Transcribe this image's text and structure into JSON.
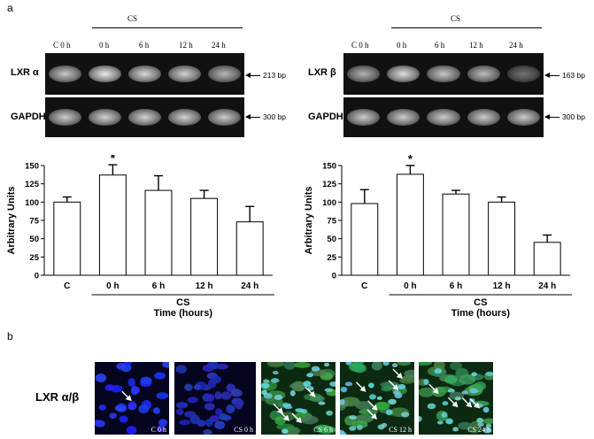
{
  "panel_a_label": "a",
  "panel_b_label": "b",
  "gel_left": {
    "cs_header": "CS",
    "lanes": [
      "C  0 h",
      "0 h",
      "6 h",
      "12 h",
      "24 h"
    ],
    "target_label": "LXR α",
    "target_bp": "213 bp",
    "control_label": "GAPDH",
    "control_bp": "300 bp",
    "target_intensity": [
      0.78,
      0.92,
      0.85,
      0.82,
      0.72
    ],
    "control_intensity": [
      0.8,
      0.82,
      0.82,
      0.82,
      0.8
    ]
  },
  "gel_right": {
    "cs_header": "CS",
    "lanes": [
      "C  0 h",
      "0 h",
      "6 h",
      "12 h",
      "24 h"
    ],
    "target_label": "LXR β",
    "target_bp": "163 bp",
    "control_label": "GAPDH",
    "control_bp": "300 bp",
    "target_intensity": [
      0.7,
      0.88,
      0.78,
      0.74,
      0.45
    ],
    "control_intensity": [
      0.8,
      0.8,
      0.8,
      0.8,
      0.8
    ]
  },
  "chart_data": [
    {
      "type": "bar",
      "categories": [
        "C",
        "0 h",
        "6 h",
        "12 h",
        "24 h"
      ],
      "values": [
        100,
        137,
        116,
        105,
        73
      ],
      "errors": [
        7,
        14,
        20,
        11,
        21
      ],
      "significance": [
        "",
        "*",
        "",
        "",
        ""
      ],
      "ylabel": "Arbitrary Units",
      "xlabel": "Time (hours)",
      "group_label": "CS",
      "ylim": [
        0,
        150
      ],
      "yticks": [
        "0",
        "25",
        "50",
        "75",
        "100",
        "125",
        "150"
      ],
      "grid": false
    },
    {
      "type": "bar",
      "categories": [
        "C",
        "0 h",
        "6 h",
        "12 h",
        "24 h"
      ],
      "values": [
        98,
        138,
        111,
        100,
        45
      ],
      "errors": [
        19,
        12,
        5,
        7,
        10
      ],
      "significance": [
        "",
        "*",
        "",
        "",
        ""
      ],
      "ylabel": "Arbitrary Units",
      "xlabel": "Time (hours)",
      "group_label": "CS",
      "ylim": [
        0,
        150
      ],
      "yticks": [
        "0",
        "25",
        "50",
        "75",
        "100",
        "125",
        "150"
      ],
      "grid": false
    }
  ],
  "micrographs": {
    "row_label": "LXR α/β",
    "panels": [
      {
        "label": "C 0 h",
        "stain": "blue",
        "arrows": 1
      },
      {
        "label": "CS 0 h",
        "stain": "blue",
        "arrows": 0
      },
      {
        "label": "CS 6 h",
        "stain": "green",
        "arrows": 4
      },
      {
        "label": "CS 12 h",
        "stain": "green",
        "arrows": 5
      },
      {
        "label": "CS 24 h",
        "stain": "green",
        "arrows": 4
      }
    ]
  }
}
